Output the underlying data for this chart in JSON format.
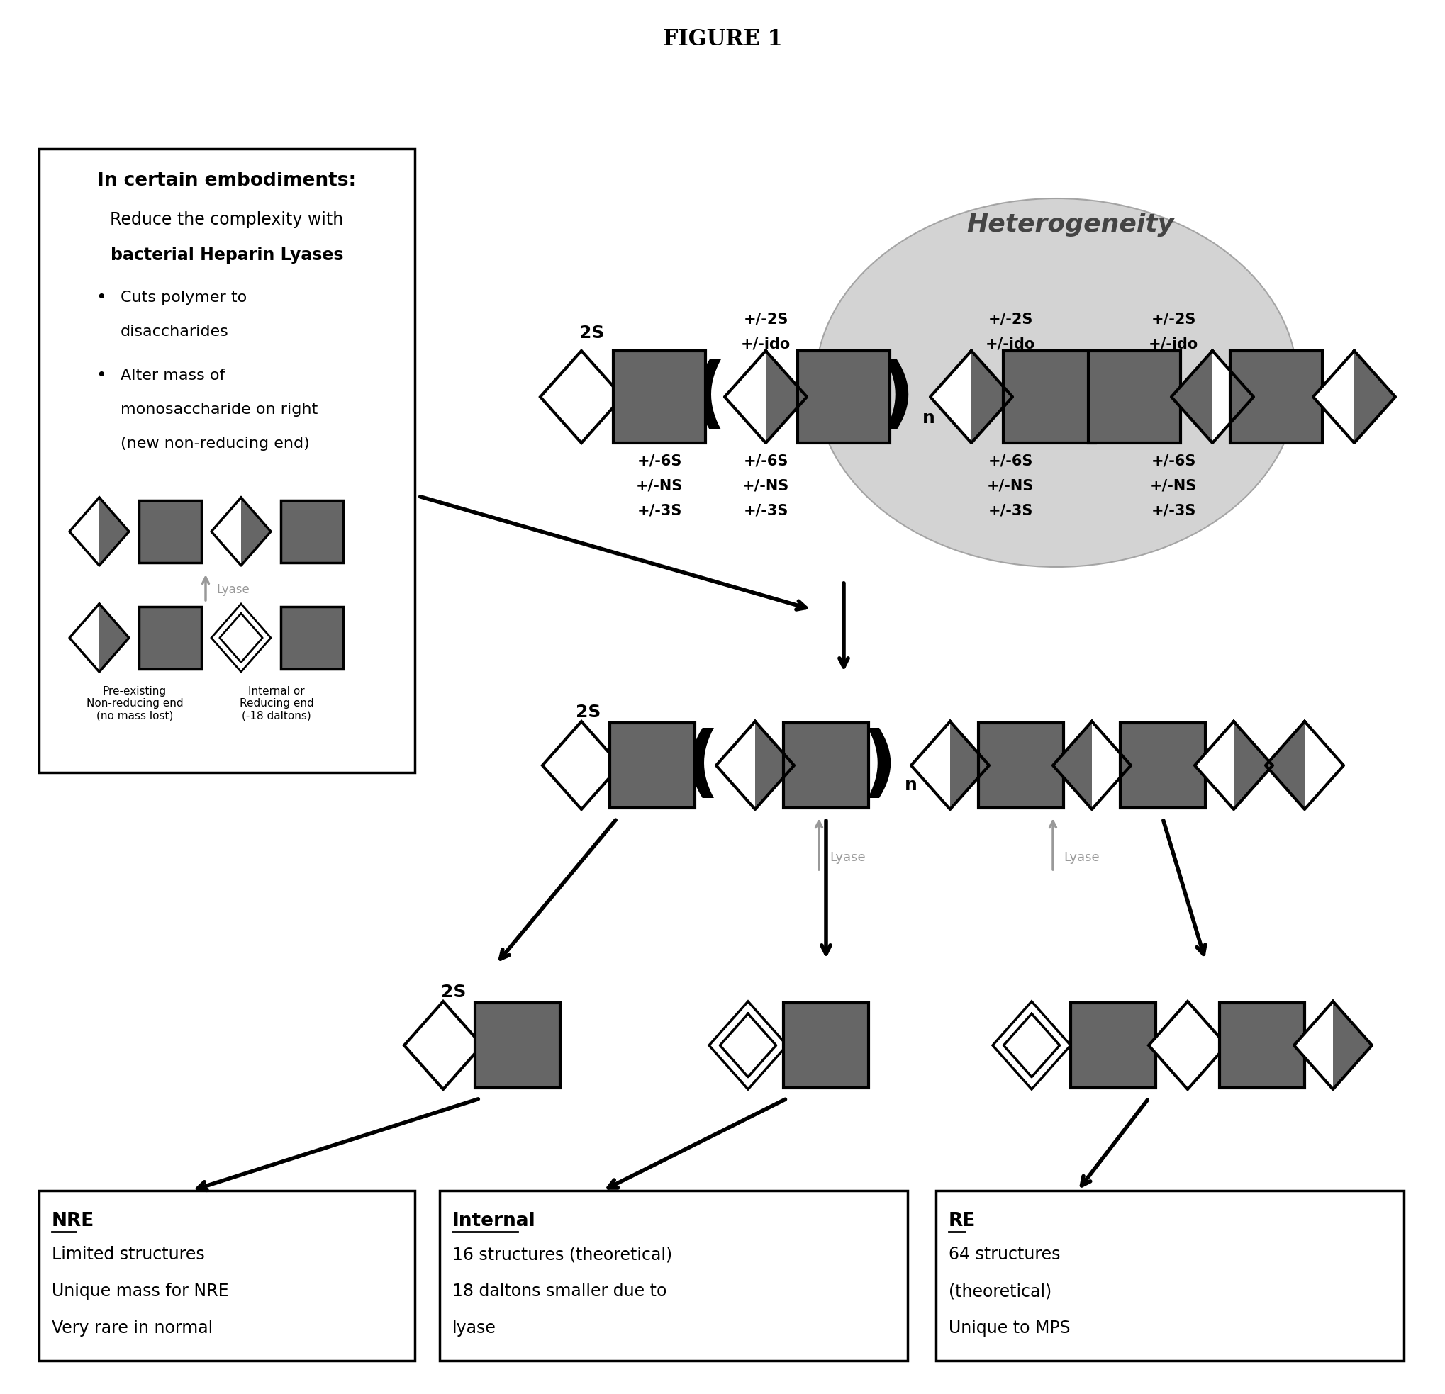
{
  "title": "FIGURE 1",
  "bg_color": "#ffffff",
  "dark_gray": "#666666",
  "medium_gray": "#999999",
  "left_box": {
    "title": "In certain embodiments:",
    "line1": "Reduce the complexity with",
    "line2": "bacterial Heparin Lyases",
    "bullet1_line1": "Cuts polymer to",
    "bullet1_line2": "disaccharides",
    "bullet2_line1": "Alter mass of",
    "bullet2_line2": "monosaccharide on right",
    "bullet2_line3": "(new non-reducing end)"
  },
  "heterogeneity_label": "Heterogeneity",
  "nre_box": {
    "title": "NRE",
    "line1": "Limited structures",
    "line2": "Unique mass for NRE",
    "line3": "Very rare in normal"
  },
  "internal_box": {
    "title": "Internal",
    "line1": "16 structures (theoretical)",
    "line2": "18 daltons smaller due to",
    "line3": "lyase"
  },
  "re_box": {
    "title": "RE",
    "line1": "64 structures",
    "line2": "(theoretical)",
    "line3": "Unique to MPS"
  }
}
